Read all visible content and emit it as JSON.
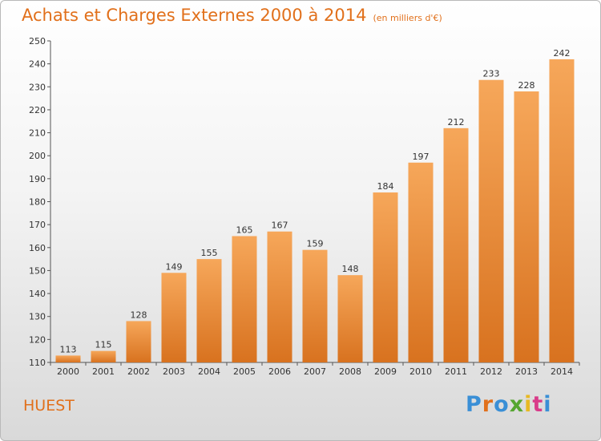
{
  "title": "Achats et Charges Externes 2000 à 2014",
  "subtitle": "(en milliers d'€)",
  "commune": "HUEST",
  "logo": {
    "text": "Proxiti",
    "letter_colors": [
      "#3a8fd6",
      "#e1701b",
      "#3a8fd6",
      "#55a630",
      "#e8b923",
      "#d93b8a",
      "#3a8fd6"
    ]
  },
  "colors": {
    "bar_light": "#f6a75a",
    "bar_dark": "#d8721f",
    "accent": "#e1701b"
  },
  "chart_data": {
    "type": "bar",
    "categories": [
      "2000",
      "2001",
      "2002",
      "2003",
      "2004",
      "2005",
      "2006",
      "2007",
      "2008",
      "2009",
      "2010",
      "2011",
      "2012",
      "2013",
      "2014"
    ],
    "values": [
      113,
      115,
      128,
      149,
      155,
      165,
      167,
      159,
      148,
      184,
      197,
      212,
      233,
      228,
      242
    ],
    "ylim": [
      110,
      250
    ],
    "yticks": [
      110,
      120,
      130,
      140,
      150,
      160,
      170,
      180,
      190,
      200,
      210,
      220,
      230,
      240,
      250
    ],
    "xlabel": "",
    "ylabel": "",
    "grid": false
  }
}
